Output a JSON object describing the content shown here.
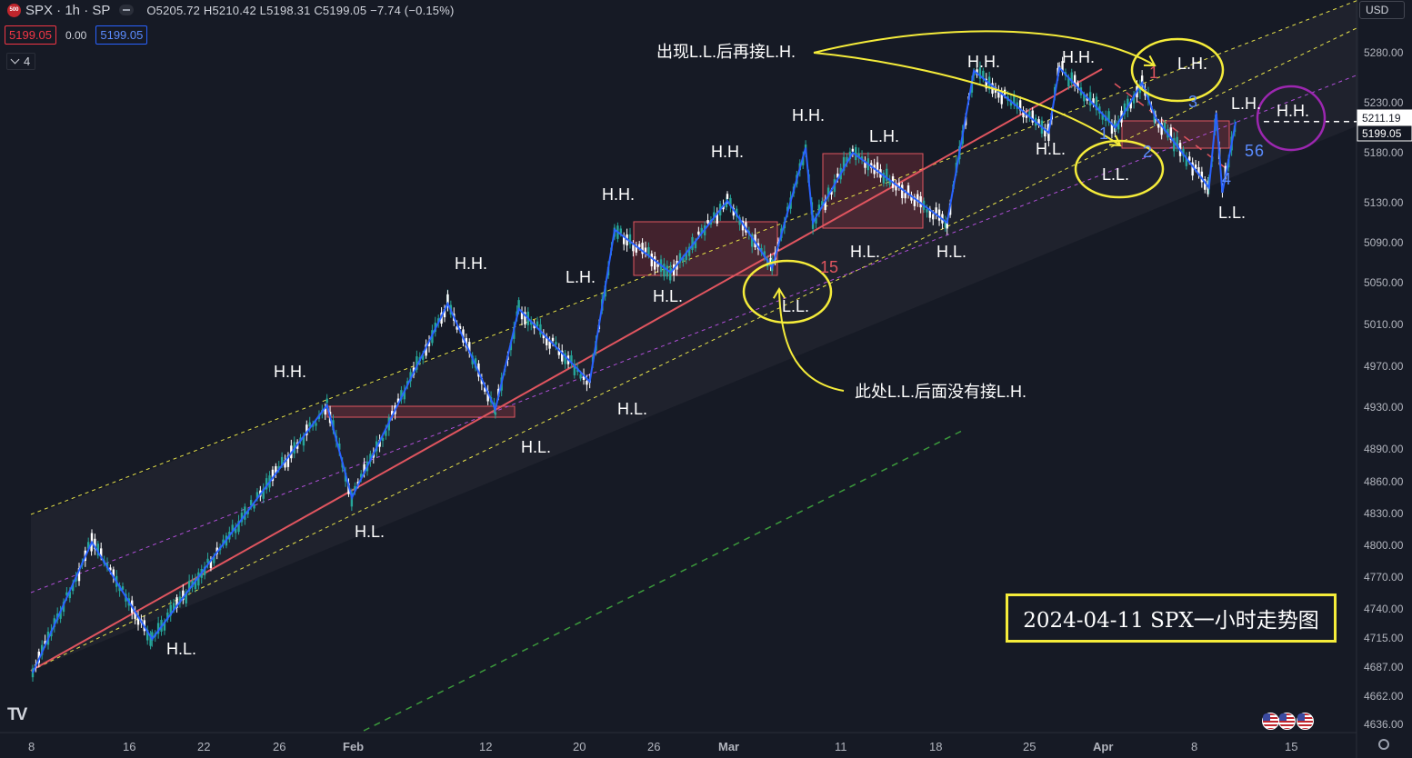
{
  "header": {
    "logo_text": "500",
    "symbol": "SPX · 1h · SP",
    "ohlc": "O5205.72  H5210.42  L5198.31  C5199.05  −7.74 (−0.15%)",
    "bid": "5199.05",
    "spread": "0.00",
    "ask": "5199.05",
    "indicators_count": "4",
    "currency": "USD"
  },
  "caption": "2024-04-11 SPX一小时走势图",
  "colors": {
    "background": "#161a25",
    "up_candle": "#26a69a",
    "down_candle": "#ffffff",
    "zigzag": "#2962ff",
    "trend_line": "#e0555f",
    "channel": "#e8e34a",
    "mid_line": "#b04fd8",
    "annotation": "#f5ec3a",
    "circle_purple": "#9c27b0",
    "box_fill": "rgba(200,60,70,0.25)"
  },
  "chart_data": {
    "type": "candlestick",
    "y_axis": {
      "range": [
        4625,
        5315
      ],
      "ticks": [
        "5280.00",
        "5230.00",
        "5180.00",
        "5130.00",
        "5090.00",
        "5050.00",
        "5010.00",
        "4970.00",
        "4930.00",
        "4890.00",
        "4860.00",
        "4830.00",
        "4800.00",
        "4770.00",
        "4740.00",
        "4715.00",
        "4687.00",
        "4662.00",
        "4636.00"
      ]
    },
    "x_axis": {
      "ticks": [
        "8",
        "16",
        "22",
        "26",
        "Feb",
        "12",
        "20",
        "26",
        "Mar",
        "11",
        "18",
        "25",
        "Apr",
        "8",
        "15"
      ]
    },
    "price_labels": [
      {
        "value": 5211.19,
        "text": "5211.19",
        "style": "white"
      },
      {
        "value": 5199.05,
        "text": "5199.05",
        "style": "dark"
      }
    ],
    "swing_points": [
      {
        "date": "Jan 8",
        "price": 4682
      },
      {
        "date": "Jan 13",
        "price": 4803
      },
      {
        "date": "Jan 18",
        "price": 4714
      },
      {
        "date": "Jan 30",
        "price": 4932
      },
      {
        "date": "Feb 1",
        "price": 4845
      },
      {
        "date": "Feb 9",
        "price": 5030
      },
      {
        "date": "Feb 13",
        "price": 4928
      },
      {
        "date": "Feb 15",
        "price": 5025
      },
      {
        "date": "Feb 21",
        "price": 4955
      },
      {
        "date": "Feb 23",
        "price": 5103
      },
      {
        "date": "Feb 27",
        "price": 5060
      },
      {
        "date": "Mar 1",
        "price": 5132
      },
      {
        "date": "Mar 5",
        "price": 5065
      },
      {
        "date": "Mar 8",
        "price": 5185
      },
      {
        "date": "Mar 8",
        "price": 5110
      },
      {
        "date": "Mar 12",
        "price": 5180
      },
      {
        "date": "Mar 19",
        "price": 5110
      },
      {
        "date": "Mar 21",
        "price": 5262
      },
      {
        "date": "Mar 27",
        "price": 5200
      },
      {
        "date": "Mar 28",
        "price": 5265
      },
      {
        "date": "Apr 2",
        "price": 5205
      },
      {
        "date": "Apr 4",
        "price": 5250
      },
      {
        "date": "Apr 5",
        "price": 5215
      },
      {
        "date": "Apr 9",
        "price": 5145
      },
      {
        "date": "Apr 9",
        "price": 5220
      },
      {
        "date": "Apr 10",
        "price": 5140
      },
      {
        "date": "Apr 11",
        "price": 5211
      }
    ],
    "annotations": [
      "H.H.",
      "H.L.",
      "L.H.",
      "L.L.",
      "出现L.L.后再接L.H.",
      "此处L.L.后面没有接L.H.",
      "15",
      "1",
      "2",
      "3",
      "4",
      "5",
      "6"
    ]
  }
}
